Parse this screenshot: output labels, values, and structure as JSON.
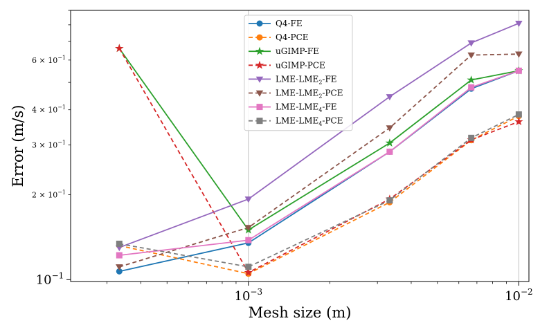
{
  "chart_data": {
    "type": "line",
    "xlabel": "Mesh size (m)",
    "ylabel": "Error (m/s)",
    "xscale": "log",
    "yscale": "log",
    "xlim": [
      0.00022,
      0.0109
    ],
    "ylim": [
      0.0985,
      0.9
    ],
    "grid": "vertical lines at x = 10^-3 and 10^-2",
    "legend_position": "upper center",
    "x": [
      0.000333,
      0.001,
      0.00333,
      0.00667,
      0.01
    ],
    "x_major_ticks": [
      {
        "value": 0.001,
        "base": "10",
        "exp": "−3"
      },
      {
        "value": 0.01,
        "base": "10",
        "exp": "−2"
      }
    ],
    "y_major_ticks": [
      {
        "value": 0.1,
        "base": "10",
        "exp": "−1"
      }
    ],
    "y_minor_ticks": [
      {
        "value": 0.2,
        "mant": "2 × 10",
        "exp": "−1"
      },
      {
        "value": 0.3,
        "mant": "3 × 10",
        "exp": "−1"
      },
      {
        "value": 0.4,
        "mant": "4 × 10",
        "exp": "−1"
      },
      {
        "value": 0.6,
        "mant": "6 × 10",
        "exp": "−1"
      }
    ],
    "series": [
      {
        "name_base": "Q4-FE",
        "name_sub": "",
        "name_tail": "",
        "color": "#1f77b4",
        "dash": false,
        "marker": "circle",
        "values": [
          0.107,
          0.135,
          0.284,
          0.475,
          0.55
        ]
      },
      {
        "name_base": "Q4-PCE",
        "name_sub": "",
        "name_tail": "",
        "color": "#ff7f0e",
        "dash": true,
        "marker": "circle",
        "values": [
          0.132,
          0.105,
          0.188,
          0.312,
          0.38
        ]
      },
      {
        "name_base": "uGIMP-FE",
        "name_sub": "",
        "name_tail": "",
        "color": "#2ca02c",
        "dash": false,
        "marker": "star",
        "values": [
          0.66,
          0.15,
          0.305,
          0.51,
          0.55
        ]
      },
      {
        "name_base": "uGIMP-PCE",
        "name_sub": "",
        "name_tail": "",
        "color": "#d62728",
        "dash": true,
        "marker": "star",
        "values": [
          0.66,
          0.106,
          0.193,
          0.313,
          0.363
        ]
      },
      {
        "name_base": "LME-LME",
        "name_sub": "2",
        "name_tail": "-FE",
        "color": "#9467bd",
        "dash": false,
        "marker": "tri_down",
        "values": [
          0.13,
          0.193,
          0.445,
          0.69,
          0.81
        ]
      },
      {
        "name_base": "LME-LME",
        "name_sub": "2",
        "name_tail": "-PCE",
        "color": "#8c564b",
        "dash": true,
        "marker": "tri_down",
        "values": [
          0.111,
          0.153,
          0.345,
          0.625,
          0.63
        ]
      },
      {
        "name_base": "LME-LME",
        "name_sub": "4",
        "name_tail": "-FE",
        "color": "#e377c2",
        "dash": false,
        "marker": "square",
        "values": [
          0.122,
          0.138,
          0.284,
          0.48,
          0.55
        ]
      },
      {
        "name_base": "LME-LME",
        "name_sub": "4",
        "name_tail": "-PCE",
        "color": "#7f7f7f",
        "dash": true,
        "marker": "square",
        "values": [
          0.134,
          0.111,
          0.191,
          0.318,
          0.385
        ]
      }
    ]
  }
}
